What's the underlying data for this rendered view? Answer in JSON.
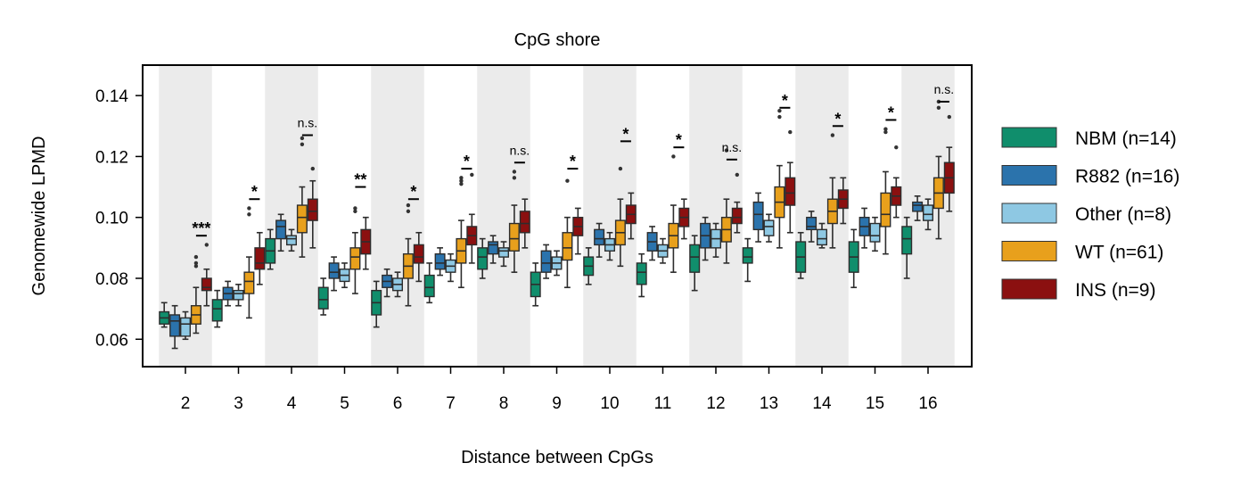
{
  "chart_data": {
    "type": "box",
    "title": "CpG shore",
    "xlabel": "Distance between CpGs",
    "ylabel": "Genomewide LPMD",
    "ylim": [
      0.051,
      0.15
    ],
    "yticks": [
      0.06,
      0.08,
      0.1,
      0.12,
      0.14
    ],
    "ytick_labels": [
      "0.06",
      "0.08",
      "0.10",
      "0.12",
      "0.14"
    ],
    "categories": [
      "2",
      "3",
      "4",
      "5",
      "6",
      "7",
      "8",
      "9",
      "10",
      "11",
      "12",
      "13",
      "14",
      "15",
      "16"
    ],
    "alternating_band_color": "#ebebeb",
    "legend_position": "right",
    "series": [
      {
        "name": "NBM (n=14)",
        "color": "#108e6c",
        "boxes": [
          [
            0.064,
            0.065,
            0.067,
            0.069,
            0.072
          ],
          [
            0.064,
            0.066,
            0.07,
            0.073,
            0.076
          ],
          [
            0.083,
            0.085,
            0.089,
            0.093,
            0.096
          ],
          [
            0.068,
            0.07,
            0.073,
            0.077,
            0.08
          ],
          [
            0.064,
            0.068,
            0.072,
            0.076,
            0.079
          ],
          [
            0.072,
            0.074,
            0.077,
            0.081,
            0.085
          ],
          [
            0.08,
            0.083,
            0.087,
            0.09,
            0.093
          ],
          [
            0.071,
            0.074,
            0.078,
            0.082,
            0.085
          ],
          [
            0.078,
            0.081,
            0.084,
            0.087,
            0.09
          ],
          [
            0.074,
            0.078,
            0.082,
            0.085,
            0.088
          ],
          [
            0.076,
            0.082,
            0.087,
            0.091,
            0.094
          ],
          [
            0.079,
            0.085,
            0.087,
            0.09,
            0.093
          ],
          [
            0.08,
            0.082,
            0.087,
            0.092,
            0.095
          ],
          [
            0.077,
            0.082,
            0.087,
            0.092,
            0.096
          ],
          [
            0.08,
            0.088,
            0.093,
            0.097,
            0.1
          ]
        ]
      },
      {
        "name": "R882 (n=16)",
        "color": "#2b73ac",
        "boxes": [
          [
            0.057,
            0.061,
            0.066,
            0.068,
            0.071
          ],
          [
            0.071,
            0.073,
            0.075,
            0.077,
            0.079
          ],
          [
            0.089,
            0.093,
            0.097,
            0.099,
            0.101
          ],
          [
            0.076,
            0.08,
            0.082,
            0.085,
            0.087
          ],
          [
            0.074,
            0.077,
            0.079,
            0.081,
            0.083
          ],
          [
            0.081,
            0.083,
            0.085,
            0.088,
            0.09
          ],
          [
            0.085,
            0.088,
            0.091,
            0.092,
            0.094
          ],
          [
            0.08,
            0.082,
            0.085,
            0.089,
            0.091
          ],
          [
            0.087,
            0.091,
            0.093,
            0.096,
            0.098
          ],
          [
            0.086,
            0.089,
            0.092,
            0.095,
            0.097
          ],
          [
            0.086,
            0.09,
            0.094,
            0.098,
            0.1
          ],
          [
            0.092,
            0.096,
            0.101,
            0.105,
            0.108
          ],
          [
            0.092,
            0.096,
            0.097,
            0.1,
            0.102
          ],
          [
            0.09,
            0.094,
            0.097,
            0.1,
            0.103
          ],
          [
            0.099,
            0.102,
            0.104,
            0.105,
            0.107
          ]
        ]
      },
      {
        "name": "Other (n=8)",
        "color": "#8ec8e3",
        "boxes": [
          [
            0.06,
            0.061,
            0.065,
            0.067,
            0.069
          ],
          [
            0.071,
            0.073,
            0.075,
            0.076,
            0.078
          ],
          [
            0.089,
            0.091,
            0.093,
            0.094,
            0.096
          ],
          [
            0.077,
            0.079,
            0.081,
            0.083,
            0.085
          ],
          [
            0.074,
            0.076,
            0.078,
            0.08,
            0.082
          ],
          [
            0.079,
            0.082,
            0.084,
            0.086,
            0.088
          ],
          [
            0.084,
            0.087,
            0.089,
            0.09,
            0.092
          ],
          [
            0.081,
            0.083,
            0.085,
            0.087,
            0.089
          ],
          [
            0.086,
            0.089,
            0.091,
            0.093,
            0.095
          ],
          [
            0.085,
            0.087,
            0.089,
            0.091,
            0.093
          ],
          [
            0.087,
            0.09,
            0.093,
            0.096,
            0.098
          ],
          [
            0.092,
            0.094,
            0.097,
            0.099,
            0.101
          ],
          [
            0.09,
            0.091,
            0.093,
            0.096,
            0.098
          ],
          [
            0.089,
            0.092,
            0.094,
            0.098,
            0.1
          ],
          [
            0.096,
            0.099,
            0.101,
            0.104,
            0.106
          ]
        ]
      },
      {
        "name": "WT (n=61)",
        "color": "#e8a01c",
        "boxes": [
          [
            0.062,
            0.065,
            0.068,
            0.071,
            0.077
          ],
          [
            0.067,
            0.075,
            0.079,
            0.082,
            0.087
          ],
          [
            0.087,
            0.095,
            0.1,
            0.104,
            0.11
          ],
          [
            0.075,
            0.083,
            0.087,
            0.09,
            0.095
          ],
          [
            0.071,
            0.08,
            0.084,
            0.088,
            0.093
          ],
          [
            0.077,
            0.085,
            0.089,
            0.093,
            0.099
          ],
          [
            0.082,
            0.089,
            0.093,
            0.098,
            0.104
          ],
          [
            0.077,
            0.086,
            0.09,
            0.095,
            0.1
          ],
          [
            0.084,
            0.091,
            0.095,
            0.099,
            0.106
          ],
          [
            0.082,
            0.09,
            0.094,
            0.098,
            0.104
          ],
          [
            0.085,
            0.092,
            0.096,
            0.1,
            0.106
          ],
          [
            0.09,
            0.1,
            0.105,
            0.11,
            0.117
          ],
          [
            0.09,
            0.098,
            0.102,
            0.106,
            0.113
          ],
          [
            0.088,
            0.097,
            0.101,
            0.108,
            0.115
          ],
          [
            0.093,
            0.103,
            0.108,
            0.113,
            0.12
          ]
        ],
        "outliers": [
          [
            0.087,
            0.085,
            0.084
          ],
          [
            0.103,
            0.101
          ],
          [
            0.124,
            0.126
          ],
          [
            0.103,
            0.102
          ],
          [
            0.104,
            0.102
          ],
          [
            0.113,
            0.111,
            0.112
          ],
          [
            0.115,
            0.113
          ],
          [
            0.112
          ],
          [
            0.116
          ],
          [
            0.12
          ],
          [
            0.122
          ],
          [
            0.133,
            0.135
          ],
          [
            0.127
          ],
          [
            0.129,
            0.128
          ],
          [
            0.136,
            0.138
          ]
        ]
      },
      {
        "name": "INS (n=9)",
        "color": "#8b1010",
        "boxes": [
          [
            0.071,
            0.076,
            0.077,
            0.08,
            0.083
          ],
          [
            0.078,
            0.083,
            0.085,
            0.09,
            0.095
          ],
          [
            0.09,
            0.099,
            0.102,
            0.106,
            0.112
          ],
          [
            0.083,
            0.088,
            0.092,
            0.096,
            0.1
          ],
          [
            0.079,
            0.085,
            0.087,
            0.091,
            0.095
          ],
          [
            0.085,
            0.091,
            0.094,
            0.097,
            0.101
          ],
          [
            0.09,
            0.095,
            0.098,
            0.102,
            0.106
          ],
          [
            0.088,
            0.094,
            0.097,
            0.1,
            0.103
          ],
          [
            0.093,
            0.098,
            0.101,
            0.104,
            0.108
          ],
          [
            0.093,
            0.097,
            0.1,
            0.103,
            0.106
          ],
          [
            0.095,
            0.098,
            0.1,
            0.103,
            0.105
          ],
          [
            0.095,
            0.104,
            0.108,
            0.113,
            0.118
          ],
          [
            0.098,
            0.103,
            0.106,
            0.109,
            0.113
          ],
          [
            0.1,
            0.104,
            0.107,
            0.11,
            0.113
          ],
          [
            0.102,
            0.108,
            0.113,
            0.118,
            0.123
          ]
        ],
        "outliers": [
          [
            0.091
          ],
          [],
          [
            0.116
          ],
          [],
          [],
          [
            0.114
          ],
          [],
          [],
          [],
          [],
          [
            0.114
          ],
          [
            0.128
          ],
          [],
          [
            0.123
          ],
          [
            0.133
          ]
        ]
      }
    ],
    "significance": [
      {
        "category": "2",
        "label": "***",
        "y": 0.094
      },
      {
        "category": "3",
        "label": "*",
        "y": 0.106
      },
      {
        "category": "4",
        "label": "n.s.",
        "y": 0.127
      },
      {
        "category": "5",
        "label": "**",
        "y": 0.11
      },
      {
        "category": "6",
        "label": "*",
        "y": 0.106
      },
      {
        "category": "7",
        "label": "*",
        "y": 0.116
      },
      {
        "category": "8",
        "label": "n.s.",
        "y": 0.118
      },
      {
        "category": "9",
        "label": "*",
        "y": 0.116
      },
      {
        "category": "10",
        "label": "*",
        "y": 0.125
      },
      {
        "category": "11",
        "label": "*",
        "y": 0.123
      },
      {
        "category": "12",
        "label": "n.s.",
        "y": 0.119
      },
      {
        "category": "13",
        "label": "*",
        "y": 0.136
      },
      {
        "category": "14",
        "label": "*",
        "y": 0.13
      },
      {
        "category": "15",
        "label": "*",
        "y": 0.132
      },
      {
        "category": "16",
        "label": "n.s.",
        "y": 0.138
      }
    ]
  }
}
